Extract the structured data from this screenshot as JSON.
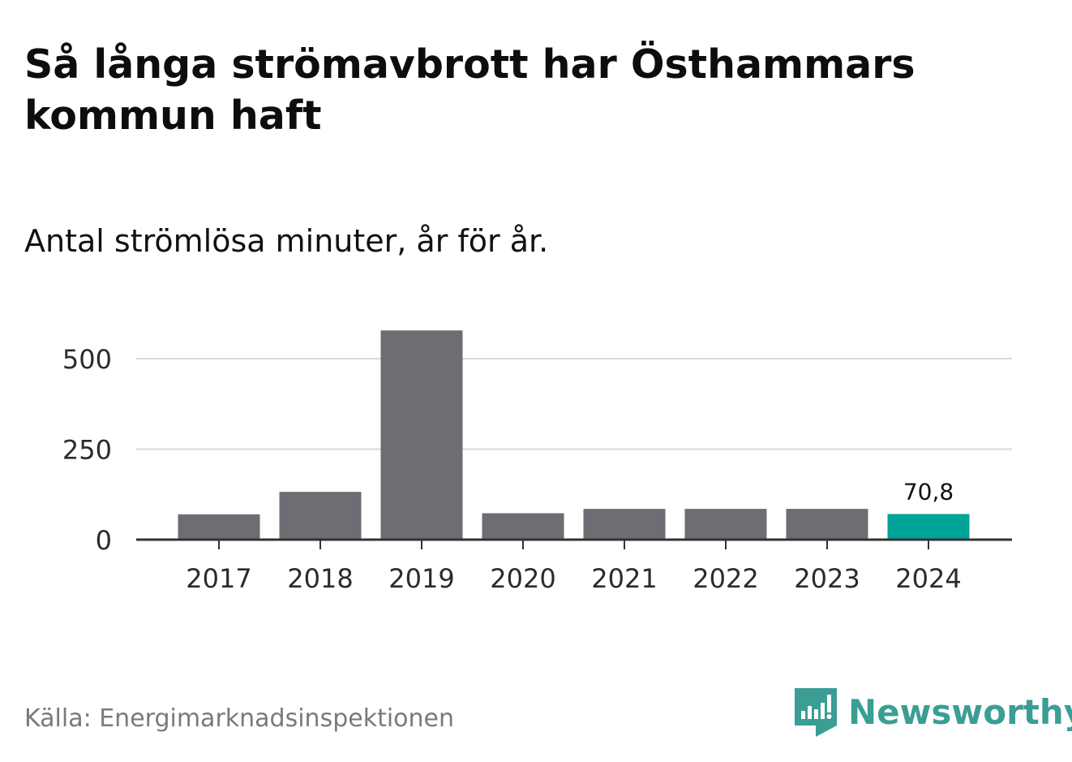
{
  "title": "Så långa strömavbrott har Östhammars kommun haft",
  "subtitle": "Antal strömlösa minuter, år för år.",
  "source": "Källa: Energimarknadsinspektionen",
  "brand": {
    "name": "Newsworthy",
    "icon": "newsworthy-logo-icon",
    "color": "#3a9e94"
  },
  "colors": {
    "bar": "#6e6d73",
    "highlight": "#00a398",
    "grid": "#d9d9d9",
    "axis": "#333333"
  },
  "chart_data": {
    "type": "bar",
    "title": "Så långa strömavbrott har Östhammars kommun haft",
    "subtitle": "Antal strömlösa minuter, år för år.",
    "categories": [
      "2017",
      "2018",
      "2019",
      "2020",
      "2021",
      "2022",
      "2023",
      "2024"
    ],
    "values": [
      70,
      132,
      578,
      73,
      85,
      85,
      85,
      70.8
    ],
    "highlight_index": 7,
    "data_labels": [
      {
        "index": 7,
        "text": "70,8"
      }
    ],
    "yticks": [
      0,
      250,
      500
    ],
    "ytick_labels": [
      "0",
      "250",
      "500"
    ],
    "ylim": [
      0,
      600
    ],
    "grid": true,
    "xlabel": "",
    "ylabel": ""
  }
}
